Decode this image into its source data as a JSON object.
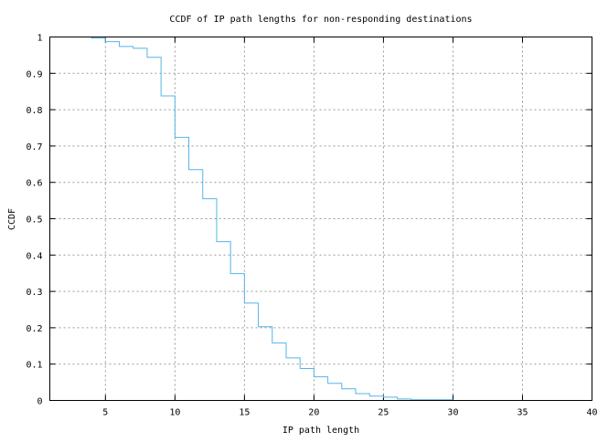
{
  "chart_data": {
    "type": "line",
    "style": "step",
    "title": "CCDF of IP path lengths for non-responding destinations",
    "xlabel": "IP path length",
    "ylabel": "CCDF",
    "xlim": [
      1,
      40
    ],
    "ylim": [
      0,
      1
    ],
    "xticks": [
      "5",
      "10",
      "15",
      "20",
      "25",
      "30",
      "35",
      "40"
    ],
    "yticks": [
      "0",
      "0.1",
      "0.2",
      "0.3",
      "0.4",
      "0.5",
      "0.6",
      "0.7",
      "0.8",
      "0.9",
      "1"
    ],
    "grid": true,
    "line_color": "#56b4e9",
    "x": [
      2,
      3,
      4,
      5,
      6,
      7,
      8,
      9,
      10,
      11,
      12,
      13,
      14,
      15,
      16,
      17,
      18,
      19,
      20,
      21,
      22,
      23,
      24,
      25,
      26,
      27,
      28,
      29,
      30
    ],
    "y": [
      1.0,
      1.0,
      0.997,
      0.987,
      0.974,
      0.969,
      0.944,
      0.838,
      0.724,
      0.635,
      0.555,
      0.437,
      0.349,
      0.268,
      0.203,
      0.158,
      0.117,
      0.088,
      0.065,
      0.047,
      0.032,
      0.019,
      0.012,
      0.009,
      0.004,
      0.002,
      0.002,
      0.002,
      0.002
    ]
  }
}
